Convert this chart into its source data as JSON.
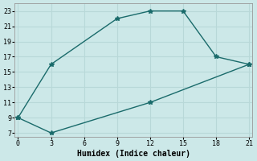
{
  "xlabel": "Humidex (Indice chaleur)",
  "bg_color": "#cce8e8",
  "grid_color": "#b8d8d8",
  "line_color": "#1a6b6b",
  "line1_x": [
    0,
    3,
    9,
    12,
    15,
    18,
    21
  ],
  "line1_y": [
    9,
    16,
    22,
    23,
    23,
    17,
    16
  ],
  "line2_x": [
    0,
    3,
    12,
    21
  ],
  "line2_y": [
    9,
    7,
    11,
    16
  ],
  "xlim": [
    -0.3,
    21.3
  ],
  "ylim": [
    6.5,
    24.0
  ],
  "xticks": [
    0,
    3,
    6,
    9,
    12,
    15,
    18,
    21
  ],
  "yticks": [
    7,
    9,
    11,
    13,
    15,
    17,
    19,
    21,
    23
  ]
}
